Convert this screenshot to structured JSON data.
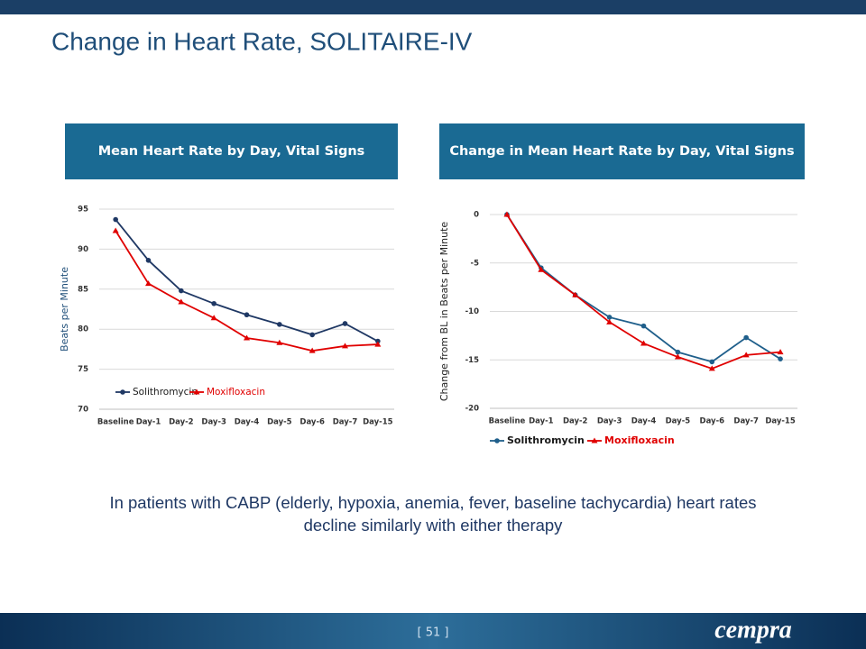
{
  "slide_title": "Change in Heart Rate, SOLITAIRE-IV",
  "caption": "In patients with CABP (elderly, hypoxia, anemia, fever, baseline tachycardia) heart rates decline similarly with either therapy",
  "page_number": "[ 51 ]",
  "logo": "cempra",
  "chart_data": [
    {
      "type": "line",
      "title": "Mean Heart Rate by Day, Vital Signs",
      "y_label": "Beats per Minute",
      "categories": [
        "Baseline",
        "Day-1",
        "Day-2",
        "Day-3",
        "Day-4",
        "Day-5",
        "Day-6",
        "Day-7",
        "Day-15"
      ],
      "series": [
        {
          "name": "Solithromycin",
          "color": "#1f3864",
          "marker": "circle",
          "values": [
            93.7,
            88.6,
            84.8,
            83.2,
            81.8,
            80.6,
            79.3,
            80.7,
            78.5
          ]
        },
        {
          "name": "Moxifloxacin",
          "color": "#e00000",
          "marker": "triangle",
          "values": [
            92.3,
            85.7,
            83.4,
            81.4,
            78.9,
            78.3,
            77.3,
            77.9,
            78.1
          ]
        }
      ],
      "ylim": [
        70,
        95
      ],
      "yticks": [
        70,
        75,
        80,
        85,
        90,
        95
      ],
      "grid": true,
      "legend": "lower left"
    },
    {
      "type": "line",
      "title": "Change in Mean Heart Rate by Day, Vital Signs",
      "y_label": "Change from BL in Beats per Minute",
      "categories": [
        "Baseline",
        "Day-1",
        "Day-2",
        "Day-3",
        "Day-4",
        "Day-5",
        "Day-6",
        "Day-7",
        "Day-15"
      ],
      "series": [
        {
          "name": "Solithromycin",
          "color": "#1f5f8b",
          "marker": "circle",
          "values": [
            0,
            -5.5,
            -8.3,
            -10.6,
            -11.5,
            -14.2,
            -15.2,
            -12.7,
            -14.9
          ]
        },
        {
          "name": "Moxifloxacin",
          "color": "#e00000",
          "marker": "triangle",
          "values": [
            0,
            -5.7,
            -8.3,
            -11.1,
            -13.3,
            -14.7,
            -15.9,
            -14.5,
            -14.2
          ]
        }
      ],
      "ylim": [
        -20,
        0
      ],
      "yticks": [
        -20,
        -15,
        -10,
        -5,
        0
      ],
      "grid": true,
      "legend": "bottom"
    }
  ]
}
